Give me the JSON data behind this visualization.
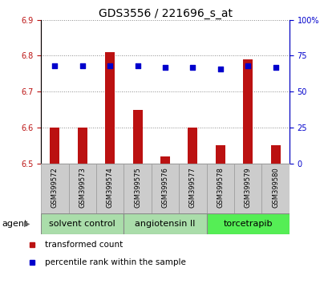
{
  "title": "GDS3556 / 221696_s_at",
  "samples": [
    "GSM399572",
    "GSM399573",
    "GSM399574",
    "GSM399575",
    "GSM399576",
    "GSM399577",
    "GSM399578",
    "GSM399579",
    "GSM399580"
  ],
  "bar_values": [
    6.6,
    6.6,
    6.81,
    6.65,
    6.52,
    6.6,
    6.55,
    6.79,
    6.55
  ],
  "percentile_values": [
    68,
    68,
    68,
    68,
    67,
    67,
    66,
    68,
    67
  ],
  "bar_bottom": 6.5,
  "ylim_left": [
    6.5,
    6.9
  ],
  "ylim_right": [
    0,
    100
  ],
  "yticks_left": [
    6.5,
    6.6,
    6.7,
    6.8,
    6.9
  ],
  "yticks_right": [
    0,
    25,
    50,
    75,
    100
  ],
  "bar_color": "#bb1111",
  "dot_color": "#0000cc",
  "groups": [
    {
      "label": "solvent control",
      "start": 0,
      "end": 3,
      "color": "#aaddaa"
    },
    {
      "label": "angiotensin II",
      "start": 3,
      "end": 6,
      "color": "#aaddaa"
    },
    {
      "label": "torcetrapib",
      "start": 6,
      "end": 9,
      "color": "#55ee55"
    }
  ],
  "agent_label": "agent",
  "legend_bar_label": "transformed count",
  "legend_dot_label": "percentile rank within the sample",
  "grid_color": "#888888",
  "background_color": "#ffffff",
  "plot_bg_color": "#ffffff",
  "label_bg_color": "#cccccc",
  "font_size_tick": 7,
  "font_size_title": 10,
  "font_size_legend": 7.5,
  "font_size_group": 8,
  "font_size_sample": 6
}
